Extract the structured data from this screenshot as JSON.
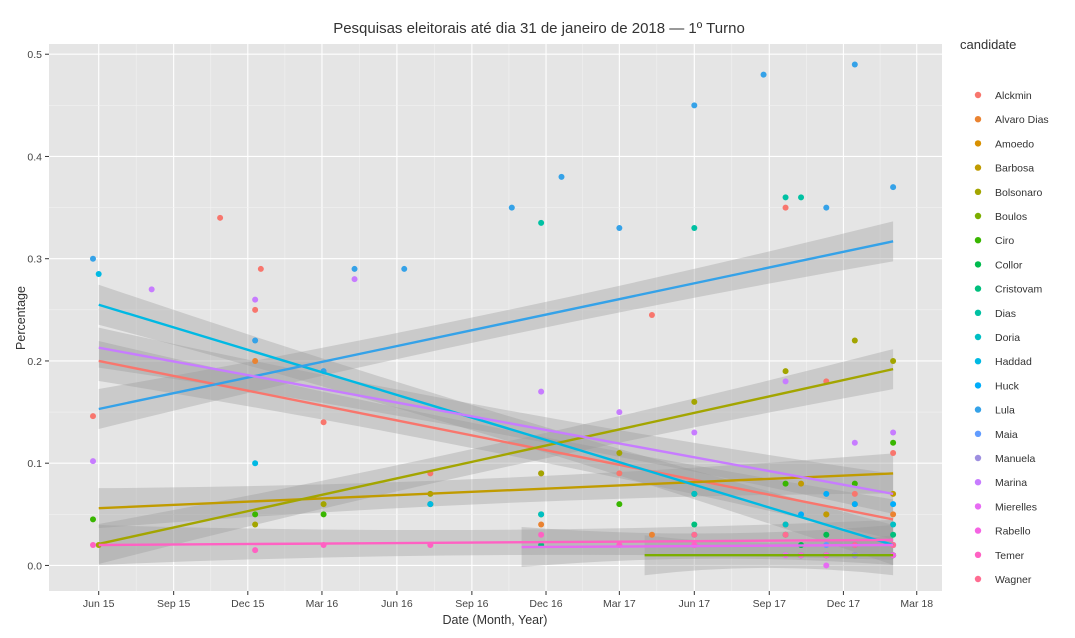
{
  "chart_data": {
    "type": "scatter",
    "title": "Pesquisas eleitorais até dia 31 de janeiro de 2018 — 1º Turno",
    "xlabel": "Date (Month, Year)",
    "ylabel": "Percentage",
    "x_ticks": [
      "Jun 15",
      "Sep 15",
      "Dec 15",
      "Mar 16",
      "Jun 16",
      "Sep 16",
      "Dec 16",
      "Mar 17",
      "Jun 17",
      "Sep 17",
      "Dec 17",
      "Mar 18"
    ],
    "y_ticks": [
      "0.0",
      "0.1",
      "0.2",
      "0.3",
      "0.4",
      "0.5"
    ],
    "xlim": [
      "2015-04-01",
      "2018-04-01"
    ],
    "ylim": [
      -0.025,
      0.51
    ],
    "grid": true,
    "legend": {
      "title": "candidate",
      "position": "right"
    },
    "series": [
      {
        "name": "Alckmin",
        "color": "#F8766D",
        "points": [
          [
            "2015-05-25",
            0.146
          ],
          [
            "2015-10-28",
            0.34
          ],
          [
            "2015-12-10",
            0.25
          ],
          [
            "2015-12-17",
            0.29
          ],
          [
            "2016-03-03",
            0.14
          ],
          [
            "2016-07-12",
            0.09
          ],
          [
            "2016-11-25",
            0.09
          ],
          [
            "2017-03-01",
            0.09
          ],
          [
            "2017-04-10",
            0.245
          ],
          [
            "2017-09-21",
            0.35
          ],
          [
            "2017-11-10",
            0.18
          ],
          [
            "2017-12-15",
            0.07
          ],
          [
            "2018-01-31",
            0.11
          ]
        ],
        "trend": [
          [
            "2015-06-01",
            0.2
          ],
          [
            "2018-01-31",
            0.045
          ]
        ]
      },
      {
        "name": "Alvaro Dias",
        "color": "#EA8331",
        "points": [
          [
            "2015-12-10",
            0.2
          ],
          [
            "2016-11-25",
            0.04
          ],
          [
            "2017-04-10",
            0.03
          ],
          [
            "2017-09-21",
            0.04
          ],
          [
            "2017-11-10",
            0.05
          ],
          [
            "2018-01-31",
            0.05
          ]
        ],
        "trend": []
      },
      {
        "name": "Amoedo",
        "color": "#D89000",
        "points": [
          [
            "2017-10-10",
            0.01
          ],
          [
            "2017-11-10",
            0.01
          ],
          [
            "2017-12-15",
            0.01
          ],
          [
            "2018-01-31",
            0.01
          ]
        ],
        "trend": []
      },
      {
        "name": "Barbosa",
        "color": "#C09B00",
        "points": [
          [
            "2017-10-10",
            0.08
          ],
          [
            "2017-11-10",
            0.05
          ],
          [
            "2017-12-15",
            0.06
          ],
          [
            "2018-01-31",
            0.07
          ]
        ],
        "trend": [
          [
            "2015-06-01",
            0.056
          ],
          [
            "2018-01-31",
            0.09
          ]
        ]
      },
      {
        "name": "Bolsonaro",
        "color": "#A3A500",
        "points": [
          [
            "2015-06-01",
            0.02
          ],
          [
            "2015-12-10",
            0.04
          ],
          [
            "2016-03-03",
            0.06
          ],
          [
            "2016-07-12",
            0.07
          ],
          [
            "2016-11-25",
            0.09
          ],
          [
            "2017-03-01",
            0.11
          ],
          [
            "2017-06-01",
            0.16
          ],
          [
            "2017-09-21",
            0.19
          ],
          [
            "2017-12-15",
            0.22
          ],
          [
            "2018-01-31",
            0.2
          ]
        ],
        "trend": [
          [
            "2015-06-01",
            0.021
          ],
          [
            "2018-01-31",
            0.192
          ]
        ]
      },
      {
        "name": "Boulos",
        "color": "#7CAE00",
        "points": [
          [
            "2017-10-10",
            0.01
          ],
          [
            "2017-11-10",
            0.01
          ],
          [
            "2017-12-15",
            0.01
          ],
          [
            "2018-01-31",
            0.01
          ]
        ],
        "trend": [
          [
            "2017-04-01",
            0.01
          ],
          [
            "2018-01-31",
            0.01
          ]
        ]
      },
      {
        "name": "Ciro",
        "color": "#39B600",
        "points": [
          [
            "2015-05-25",
            0.045
          ],
          [
            "2015-12-10",
            0.05
          ],
          [
            "2016-03-03",
            0.05
          ],
          [
            "2016-07-12",
            0.06
          ],
          [
            "2016-11-25",
            0.05
          ],
          [
            "2017-03-01",
            0.06
          ],
          [
            "2017-06-01",
            0.07
          ],
          [
            "2017-09-21",
            0.08
          ],
          [
            "2017-12-15",
            0.08
          ],
          [
            "2018-01-31",
            0.12
          ]
        ],
        "trend": []
      },
      {
        "name": "Collor",
        "color": "#00BB4E",
        "points": [
          [
            "2017-10-10",
            0.02
          ],
          [
            "2017-11-10",
            0.03
          ],
          [
            "2018-01-31",
            0.02
          ]
        ],
        "trend": []
      },
      {
        "name": "Cristovam",
        "color": "#00BF7D",
        "points": [
          [
            "2016-11-25",
            0.02
          ],
          [
            "2017-06-01",
            0.04
          ],
          [
            "2017-09-21",
            0.03
          ],
          [
            "2018-01-31",
            0.03
          ]
        ],
        "trend": []
      },
      {
        "name": "Dias",
        "color": "#00C1A3",
        "points": [
          [
            "2016-11-25",
            0.335
          ],
          [
            "2017-06-01",
            0.33
          ],
          [
            "2017-09-21",
            0.36
          ],
          [
            "2017-10-10",
            0.36
          ]
        ],
        "trend": []
      },
      {
        "name": "Doria",
        "color": "#00BFC4",
        "points": [
          [
            "2016-11-25",
            0.05
          ],
          [
            "2017-06-01",
            0.07
          ],
          [
            "2017-09-21",
            0.04
          ],
          [
            "2018-01-31",
            0.04
          ]
        ],
        "trend": []
      },
      {
        "name": "Haddad",
        "color": "#00B9E3",
        "points": [
          [
            "2015-06-01",
            0.285
          ],
          [
            "2015-12-10",
            0.1
          ],
          [
            "2016-07-12",
            0.06
          ],
          [
            "2017-06-01",
            0.03
          ],
          [
            "2017-12-15",
            0.02
          ]
        ],
        "trend": [
          [
            "2015-06-01",
            0.255
          ],
          [
            "2018-01-31",
            0.02
          ]
        ]
      },
      {
        "name": "Huck",
        "color": "#00ADFA",
        "points": [
          [
            "2017-10-10",
            0.05
          ],
          [
            "2017-11-10",
            0.07
          ],
          [
            "2017-12-15",
            0.06
          ],
          [
            "2018-01-31",
            0.06
          ]
        ],
        "trend": []
      },
      {
        "name": "Lula",
        "color": "#35A2E8",
        "points": [
          [
            "2015-05-25",
            0.3
          ],
          [
            "2015-12-10",
            0.22
          ],
          [
            "2016-03-03",
            0.19
          ],
          [
            "2016-04-10",
            0.29
          ],
          [
            "2016-06-10",
            0.29
          ],
          [
            "2016-10-20",
            0.35
          ],
          [
            "2016-12-20",
            0.38
          ],
          [
            "2017-03-01",
            0.33
          ],
          [
            "2017-06-01",
            0.45
          ],
          [
            "2017-08-25",
            0.48
          ],
          [
            "2017-11-10",
            0.35
          ],
          [
            "2017-12-15",
            0.49
          ],
          [
            "2018-01-31",
            0.37
          ]
        ],
        "trend": [
          [
            "2015-06-01",
            0.153
          ],
          [
            "2018-01-31",
            0.317
          ]
        ]
      },
      {
        "name": "Maia",
        "color": "#619CFF",
        "points": [
          [
            "2017-10-10",
            0.01
          ],
          [
            "2017-11-10",
            0.02
          ],
          [
            "2017-12-15",
            0.01
          ],
          [
            "2018-01-31",
            0.01
          ]
        ],
        "trend": []
      },
      {
        "name": "Manuela",
        "color": "#9E8FE0",
        "points": [
          [
            "2017-10-10",
            0.01
          ],
          [
            "2017-11-10",
            0.01
          ],
          [
            "2017-12-15",
            0.01
          ],
          [
            "2018-01-31",
            0.01
          ]
        ],
        "trend": []
      },
      {
        "name": "Marina",
        "color": "#C77CFF",
        "points": [
          [
            "2015-05-25",
            0.102
          ],
          [
            "2015-08-05",
            0.27
          ],
          [
            "2015-12-10",
            0.26
          ],
          [
            "2016-04-10",
            0.28
          ],
          [
            "2016-11-25",
            0.17
          ],
          [
            "2017-03-01",
            0.15
          ],
          [
            "2017-06-01",
            0.13
          ],
          [
            "2017-09-21",
            0.18
          ],
          [
            "2017-12-15",
            0.12
          ],
          [
            "2018-01-31",
            0.13
          ]
        ],
        "trend": [
          [
            "2015-06-01",
            0.213
          ],
          [
            "2018-01-31",
            0.07
          ]
        ]
      },
      {
        "name": "Mierelles",
        "color": "#E76BF3",
        "points": [
          [
            "2017-06-01",
            0.02
          ],
          [
            "2017-09-21",
            0.01
          ],
          [
            "2017-11-10",
            0.0
          ],
          [
            "2018-01-31",
            0.02
          ]
        ],
        "trend": [
          [
            "2016-11-01",
            0.018
          ],
          [
            "2018-01-31",
            0.02
          ]
        ]
      },
      {
        "name": "Rabello",
        "color": "#F564E3",
        "points": [
          [
            "2017-10-10",
            0.01
          ],
          [
            "2017-11-10",
            0.01
          ],
          [
            "2018-01-31",
            0.01
          ]
        ],
        "trend": []
      },
      {
        "name": "Temer",
        "color": "#FF61C3",
        "points": [
          [
            "2015-05-25",
            0.02
          ],
          [
            "2015-12-10",
            0.015
          ],
          [
            "2016-03-03",
            0.02
          ],
          [
            "2016-07-12",
            0.02
          ],
          [
            "2016-11-25",
            0.03
          ],
          [
            "2017-03-01",
            0.02
          ],
          [
            "2017-06-01",
            0.02
          ],
          [
            "2018-01-31",
            0.02
          ]
        ],
        "trend": [
          [
            "2015-06-01",
            0.02
          ],
          [
            "2018-01-31",
            0.025
          ]
        ]
      },
      {
        "name": "Wagner",
        "color": "#FF6C91",
        "points": [
          [
            "2017-06-01",
            0.03
          ],
          [
            "2017-09-21",
            0.03
          ],
          [
            "2017-12-15",
            0.02
          ],
          [
            "2018-01-31",
            0.02
          ]
        ],
        "trend": []
      }
    ]
  }
}
